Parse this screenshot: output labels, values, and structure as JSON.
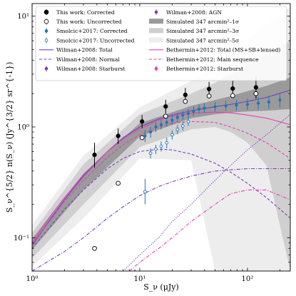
{
  "chart_data": {
    "type": "scatter",
    "xscale": "log",
    "yscale": "log",
    "xlim": [
      1,
      250
    ],
    "ylim": [
      0.05,
      13
    ],
    "grid": false,
    "legend_position": "top (two columns)",
    "xlabel": "S_ν (μJy)",
    "ylabel": "S_ν^{5/2} n(S_ν) (Jy^{3/2} sr^{-1})",
    "x_ticks": [
      {
        "value": 1,
        "label": "10⁰"
      },
      {
        "value": 10,
        "label": "10¹"
      },
      {
        "value": 100,
        "label": "10²"
      }
    ],
    "y_ticks": [
      {
        "value": 0.1,
        "label": "10⁻¹"
      },
      {
        "value": 1,
        "label": "10⁰"
      },
      {
        "value": 10,
        "label": "10¹"
      }
    ],
    "colors": {
      "this_work": "#000000",
      "smolcic": "#1f77b4",
      "wilman": "#7b3fc2",
      "bethermin": "#e83fb8",
      "sim1": "#9a9a9a",
      "sim3": "#cfcfcf",
      "sim5": "#ededed"
    },
    "legend": {
      "col1": [
        {
          "key": "tw_corr",
          "label": "This work: Corrected",
          "style": "filled-circle",
          "color": "#000000"
        },
        {
          "key": "tw_unc",
          "label": "This work: Uncorrected",
          "style": "open-circle",
          "color": "#000000"
        },
        {
          "key": "sm_corr",
          "label": "Smolcic+2017: Corrected",
          "style": "filled-dot",
          "color": "#1f77b4"
        },
        {
          "key": "sm_unc",
          "label": "Smolcic+2017: Uncorrected",
          "style": "open-dot",
          "color": "#1f77b4"
        },
        {
          "key": "wil_total",
          "label": "Wilman+2008: Total",
          "style": "solid",
          "color": "#7b3fc2"
        },
        {
          "key": "wil_normal",
          "label": "Wilman+2008: Normal",
          "style": "dashed",
          "color": "#7b3fc2"
        },
        {
          "key": "wil_sb",
          "label": "Wilman+2008: Starburst",
          "style": "dashdot",
          "color": "#7b3fc2"
        }
      ],
      "col2": [
        {
          "key": "wil_agn",
          "label": "Wilman+2008: AGN",
          "style": "dotted",
          "color": "#7b3fc2"
        },
        {
          "key": "sim1",
          "label": "Simulated 347 arcmin²–1σ",
          "style": "patch",
          "color": "#9a9a9a"
        },
        {
          "key": "sim3",
          "label": "Simulated 347 arcmin²–3σ",
          "style": "patch",
          "color": "#cfcfcf"
        },
        {
          "key": "sim5",
          "label": "Simulated 347 arcmin²–5σ",
          "style": "patch",
          "color": "#ededed"
        },
        {
          "key": "bet_total",
          "label": "Bethermin+2012: Total (MS+SB+lensed)",
          "style": "solid",
          "color": "#e83fb8"
        },
        {
          "key": "bet_ms",
          "label": "Bethermin+2012: Main sequence",
          "style": "dashed",
          "color": "#e83fb8"
        },
        {
          "key": "bet_sb",
          "label": "Bethermin+2012: Starburst",
          "style": "dashdot",
          "color": "#e83fb8"
        }
      ]
    },
    "series": [
      {
        "name": "This work: Corrected",
        "kind": "points",
        "marker": "filled",
        "color": "#000000",
        "points": [
          {
            "x": 3.8,
            "y": 0.56,
            "lo": 0.43,
            "hi": 0.72
          },
          {
            "x": 6.3,
            "y": 0.83,
            "lo": 0.7,
            "hi": 0.97
          },
          {
            "x": 10.5,
            "y": 1.12,
            "lo": 0.98,
            "hi": 1.28
          },
          {
            "x": 17.4,
            "y": 1.53,
            "lo": 1.32,
            "hi": 1.76
          },
          {
            "x": 26.5,
            "y": 1.95,
            "lo": 1.7,
            "hi": 2.25
          },
          {
            "x": 44,
            "y": 2.2,
            "lo": 1.9,
            "hi": 2.55
          },
          {
            "x": 73,
            "y": 2.22,
            "lo": 1.85,
            "hi": 2.65
          },
          {
            "x": 120,
            "y": 2.28,
            "lo": 1.8,
            "hi": 2.85
          }
        ]
      },
      {
        "name": "This work: Uncorrected",
        "kind": "points",
        "marker": "open",
        "color": "#000000",
        "points": [
          {
            "x": 3.8,
            "y": 0.08
          },
          {
            "x": 6.3,
            "y": 0.31
          },
          {
            "x": 10.5,
            "y": 0.8
          },
          {
            "x": 17.4,
            "y": 1.25
          },
          {
            "x": 26.5,
            "y": 1.7
          },
          {
            "x": 44,
            "y": 1.9
          },
          {
            "x": 73,
            "y": 1.92
          },
          {
            "x": 120,
            "y": 2.0
          }
        ]
      },
      {
        "name": "Smolcic+2017: Corrected",
        "kind": "points",
        "marker": "filled-small",
        "color": "#1f77b4",
        "points": [
          {
            "x": 11.2,
            "y": 0.83,
            "lo": 0.73,
            "hi": 0.94
          },
          {
            "x": 12.6,
            "y": 0.9,
            "lo": 0.8,
            "hi": 1.0
          },
          {
            "x": 14.1,
            "y": 1.0,
            "lo": 0.9,
            "hi": 1.1
          },
          {
            "x": 15.8,
            "y": 1.05,
            "lo": 0.95,
            "hi": 1.15
          },
          {
            "x": 17.8,
            "y": 1.1,
            "lo": 1.0,
            "hi": 1.2
          },
          {
            "x": 20.0,
            "y": 1.15,
            "lo": 1.05,
            "hi": 1.26
          },
          {
            "x": 22.4,
            "y": 1.22,
            "lo": 1.1,
            "hi": 1.34
          },
          {
            "x": 25.1,
            "y": 1.28,
            "lo": 1.16,
            "hi": 1.4
          },
          {
            "x": 28.2,
            "y": 1.32,
            "lo": 1.2,
            "hi": 1.45
          },
          {
            "x": 31.6,
            "y": 1.38,
            "lo": 1.25,
            "hi": 1.52
          },
          {
            "x": 35.5,
            "y": 1.45,
            "lo": 1.32,
            "hi": 1.6
          },
          {
            "x": 39.8,
            "y": 1.48,
            "lo": 1.34,
            "hi": 1.63
          },
          {
            "x": 50,
            "y": 1.52,
            "lo": 1.38,
            "hi": 1.68
          },
          {
            "x": 63,
            "y": 1.55,
            "lo": 1.4,
            "hi": 1.72
          },
          {
            "x": 79,
            "y": 1.57,
            "lo": 1.4,
            "hi": 1.76
          },
          {
            "x": 100,
            "y": 1.6,
            "lo": 1.42,
            "hi": 1.8
          },
          {
            "x": 126,
            "y": 1.64,
            "lo": 1.44,
            "hi": 1.86
          },
          {
            "x": 158,
            "y": 1.68,
            "lo": 1.46,
            "hi": 1.92
          },
          {
            "x": 200,
            "y": 1.75,
            "lo": 1.5,
            "hi": 2.02
          }
        ]
      },
      {
        "name": "Smolcic+2017: Uncorrected",
        "kind": "points",
        "marker": "open-small",
        "color": "#1f77b4",
        "points": [
          {
            "x": 11.2,
            "y": 0.26,
            "lo": 0.2,
            "hi": 0.34
          },
          {
            "x": 12.6,
            "y": 0.58,
            "lo": 0.52,
            "hi": 0.64
          },
          {
            "x": 14.1,
            "y": 0.63,
            "lo": 0.57,
            "hi": 0.69
          },
          {
            "x": 15.8,
            "y": 0.67,
            "lo": 0.6,
            "hi": 0.74
          },
          {
            "x": 17.8,
            "y": 0.72,
            "lo": 0.64,
            "hi": 0.8
          },
          {
            "x": 20.0,
            "y": 0.85,
            "lo": 0.77,
            "hi": 0.93
          },
          {
            "x": 22.4,
            "y": 0.95,
            "lo": 0.86,
            "hi": 1.04
          },
          {
            "x": 25.1,
            "y": 1.02,
            "lo": 0.93,
            "hi": 1.12
          },
          {
            "x": 28.2,
            "y": 1.12,
            "lo": 1.02,
            "hi": 1.22
          }
        ]
      },
      {
        "name": "Wilman+2008: Total",
        "kind": "line",
        "dash": "solid",
        "color": "#7b3fc2",
        "x": [
          1,
          1.5,
          2,
          3,
          5,
          7,
          10,
          15,
          20,
          30,
          50,
          70,
          100,
          150,
          250
        ],
        "y": [
          0.085,
          0.15,
          0.22,
          0.36,
          0.6,
          0.8,
          1.0,
          1.18,
          1.28,
          1.4,
          1.52,
          1.6,
          1.7,
          1.85,
          2.15
        ]
      },
      {
        "name": "Wilman+2008: Normal",
        "kind": "line",
        "dash": "dashed",
        "color": "#7b3fc2",
        "x": [
          1,
          2,
          3,
          5,
          7,
          10,
          15,
          20,
          30,
          50,
          70,
          100,
          150,
          250
        ],
        "y": [
          0.08,
          0.18,
          0.27,
          0.42,
          0.52,
          0.6,
          0.63,
          0.62,
          0.57,
          0.47,
          0.39,
          0.31,
          0.23,
          0.15
        ]
      },
      {
        "name": "Wilman+2008: Starburst",
        "kind": "line",
        "dash": "dashdot",
        "color": "#7b3fc2",
        "x": [
          1,
          2,
          3,
          5,
          7,
          10,
          15,
          20,
          30,
          50,
          70,
          100,
          150,
          250
        ],
        "y": [
          0.05,
          0.075,
          0.1,
          0.15,
          0.19,
          0.24,
          0.29,
          0.32,
          0.36,
          0.4,
          0.41,
          0.42,
          0.42,
          0.42
        ]
      },
      {
        "name": "Wilman+2008: AGN",
        "kind": "line",
        "dash": "dotted",
        "color": "#7b3fc2",
        "x": [
          7,
          10,
          15,
          20,
          30,
          50,
          70,
          100,
          150,
          250
        ],
        "y": [
          0.05,
          0.07,
          0.1,
          0.14,
          0.2,
          0.33,
          0.45,
          0.62,
          0.85,
          1.3
        ]
      },
      {
        "name": "Bethermin+2012: Total (MS+SB+lensed)",
        "kind": "line",
        "dash": "solid",
        "color": "#e83fb8",
        "x": [
          1,
          1.5,
          2,
          3,
          5,
          7,
          10,
          15,
          20,
          30,
          50,
          70,
          100,
          150,
          250
        ],
        "y": [
          0.09,
          0.16,
          0.23,
          0.37,
          0.6,
          0.78,
          0.96,
          1.15,
          1.25,
          1.33,
          1.36,
          1.34,
          1.28,
          1.2,
          1.05
        ]
      },
      {
        "name": "Bethermin+2012: Main sequence",
        "kind": "line",
        "dash": "dashed",
        "color": "#e83fb8",
        "x": [
          1,
          2,
          3,
          5,
          7,
          10,
          15,
          20,
          30,
          50,
          70,
          100,
          150,
          250
        ],
        "y": [
          0.088,
          0.21,
          0.33,
          0.53,
          0.69,
          0.85,
          1.0,
          1.08,
          1.12,
          1.1,
          1.0,
          0.88,
          0.72,
          0.52
        ]
      },
      {
        "name": "Bethermin+2012: Starburst",
        "kind": "line",
        "dash": "dashdot",
        "color": "#e83fb8",
        "x": [
          8,
          10,
          15,
          20,
          30,
          50,
          70,
          100,
          150,
          250
        ],
        "y": [
          0.05,
          0.06,
          0.08,
          0.1,
          0.14,
          0.2,
          0.25,
          0.27,
          0.27,
          0.22
        ]
      }
    ],
    "bands": [
      {
        "name": "Simulated 347 arcmin²–5σ",
        "color": "#ededed",
        "x": [
          1,
          3,
          10,
          30,
          50,
          70,
          100,
          150,
          250
        ],
        "lo": [
          0.055,
          0.15,
          0.52,
          0.5,
          0.05,
          0.05,
          0.05,
          0.05,
          0.05
        ],
        "hi": [
          0.13,
          0.55,
          1.5,
          2.6,
          3.6,
          4.8,
          6.2,
          8.5,
          12.0
        ]
      },
      {
        "name": "Simulated 347 arcmin²–3σ",
        "color": "#cfcfcf",
        "x": [
          1,
          3,
          10,
          30,
          50,
          70,
          100,
          150,
          250
        ],
        "lo": [
          0.065,
          0.2,
          0.66,
          0.95,
          1.0,
          0.9,
          0.72,
          0.45,
          0.05
        ],
        "hi": [
          0.11,
          0.46,
          1.3,
          2.0,
          2.5,
          3.0,
          3.6,
          4.5,
          6.0
        ]
      },
      {
        "name": "Simulated 347 arcmin²–1σ",
        "color": "#9a9a9a",
        "x": [
          1,
          3,
          10,
          30,
          50,
          70,
          100,
          150,
          250
        ],
        "lo": [
          0.078,
          0.27,
          0.82,
          1.2,
          1.3,
          1.35,
          1.38,
          1.4,
          1.45
        ],
        "hi": [
          0.098,
          0.38,
          1.08,
          1.55,
          1.75,
          1.9,
          2.1,
          2.35,
          2.8
        ]
      }
    ]
  }
}
